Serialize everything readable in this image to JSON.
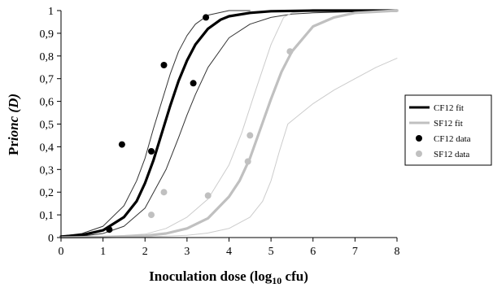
{
  "chart_data": {
    "type": "line",
    "title": "",
    "xlabel": {
      "main": "Inoculation dose (log",
      "sub": "10",
      "tail": " cfu)"
    },
    "ylabel": {
      "main": "Pr",
      "italic": "ionc",
      "tail": " (D)"
    },
    "xlim": [
      0,
      8
    ],
    "ylim": [
      0,
      1
    ],
    "x_ticks": [
      "0",
      "1",
      "2",
      "3",
      "4",
      "5",
      "6",
      "7",
      "8"
    ],
    "y_ticks": [
      "0",
      "0,1",
      "0,2",
      "0,3",
      "0,4",
      "0,5",
      "0,6",
      "0,7",
      "0,8",
      "0,9",
      "1"
    ],
    "grid": false,
    "legend_position": "right",
    "colors": {
      "cf": "#000000",
      "sf": "#c0c0c0",
      "ci": "#555555",
      "sf_ci": "#cccccc"
    },
    "series": [
      {
        "name": "CF12 fit",
        "kind": "line",
        "color": "#000000",
        "x": [
          0,
          0.5,
          1,
          1.5,
          1.8,
          2,
          2.2,
          2.4,
          2.6,
          2.8,
          3,
          3.2,
          3.5,
          3.8,
          4,
          4.5,
          5,
          6,
          7,
          8
        ],
        "y": [
          0.004,
          0.011,
          0.032,
          0.09,
          0.16,
          0.24,
          0.34,
          0.46,
          0.58,
          0.69,
          0.78,
          0.85,
          0.92,
          0.96,
          0.975,
          0.99,
          0.997,
          1,
          1,
          1
        ]
      },
      {
        "name": "SF12 fit",
        "kind": "line",
        "color": "#c0c0c0",
        "x": [
          0,
          1,
          2,
          2.5,
          3,
          3.5,
          4,
          4.25,
          4.5,
          4.75,
          5,
          5.25,
          5.5,
          6,
          6.5,
          7,
          8
        ],
        "y": [
          0,
          0.002,
          0.008,
          0.018,
          0.04,
          0.085,
          0.18,
          0.25,
          0.35,
          0.48,
          0.61,
          0.73,
          0.82,
          0.93,
          0.97,
          0.99,
          1
        ]
      },
      {
        "kind": "ci",
        "color": "#333333",
        "x": [
          0,
          0.5,
          1,
          1.5,
          1.8,
          2,
          2.2,
          2.4,
          2.6,
          2.8,
          3,
          3.2,
          3.5,
          4,
          4.5
        ],
        "y": [
          0.006,
          0.018,
          0.05,
          0.14,
          0.25,
          0.35,
          0.48,
          0.6,
          0.72,
          0.82,
          0.89,
          0.94,
          0.98,
          1,
          1
        ]
      },
      {
        "kind": "ci",
        "color": "#333333",
        "x": [
          0,
          0.5,
          1,
          1.5,
          2,
          2.5,
          2.8,
          3,
          3.2,
          3.5,
          4,
          4.5,
          5,
          5.5,
          6,
          7,
          8
        ],
        "y": [
          0.002,
          0.006,
          0.018,
          0.05,
          0.13,
          0.3,
          0.44,
          0.54,
          0.63,
          0.75,
          0.88,
          0.94,
          0.97,
          0.985,
          0.99,
          0.995,
          1
        ]
      },
      {
        "kind": "ci",
        "color": "#cccccc",
        "x": [
          0,
          1,
          2,
          2.5,
          3,
          3.5,
          4,
          4.3,
          4.6,
          5,
          5.3,
          5.5,
          6,
          7,
          8
        ],
        "y": [
          0,
          0.003,
          0.015,
          0.04,
          0.09,
          0.17,
          0.32,
          0.46,
          0.63,
          0.85,
          0.97,
          0.99,
          1,
          1,
          1
        ]
      },
      {
        "kind": "ci",
        "color": "#cccccc",
        "x": [
          0,
          1,
          2,
          3,
          3.5,
          4,
          4.5,
          4.8,
          5,
          5.2,
          5.4,
          5.6,
          6,
          6.5,
          7,
          7.5,
          8
        ],
        "y": [
          0,
          0.001,
          0.003,
          0.01,
          0.02,
          0.04,
          0.09,
          0.16,
          0.25,
          0.38,
          0.5,
          0.53,
          0.59,
          0.65,
          0.7,
          0.75,
          0.79
        ]
      },
      {
        "name": "CF12 data",
        "kind": "points",
        "color": "#000000",
        "x": [
          1.15,
          1.45,
          2.15,
          2.45,
          3.15,
          3.45
        ],
        "y": [
          0.035,
          0.41,
          0.38,
          0.76,
          0.68,
          0.97
        ]
      },
      {
        "name": "SF12 data",
        "kind": "points",
        "color": "#c0c0c0",
        "x": [
          2.15,
          2.45,
          3.5,
          4.45,
          4.5,
          5.45
        ],
        "y": [
          0.1,
          0.2,
          0.185,
          0.335,
          0.45,
          0.82
        ]
      }
    ],
    "legend": [
      {
        "label": "CF12 fit",
        "kind": "line",
        "color": "#000000"
      },
      {
        "label": "SF12 fit",
        "kind": "line",
        "color": "#c0c0c0"
      },
      {
        "label": "CF12 data",
        "kind": "point",
        "color": "#000000"
      },
      {
        "label": "SF12 data",
        "kind": "point",
        "color": "#c0c0c0"
      }
    ]
  }
}
